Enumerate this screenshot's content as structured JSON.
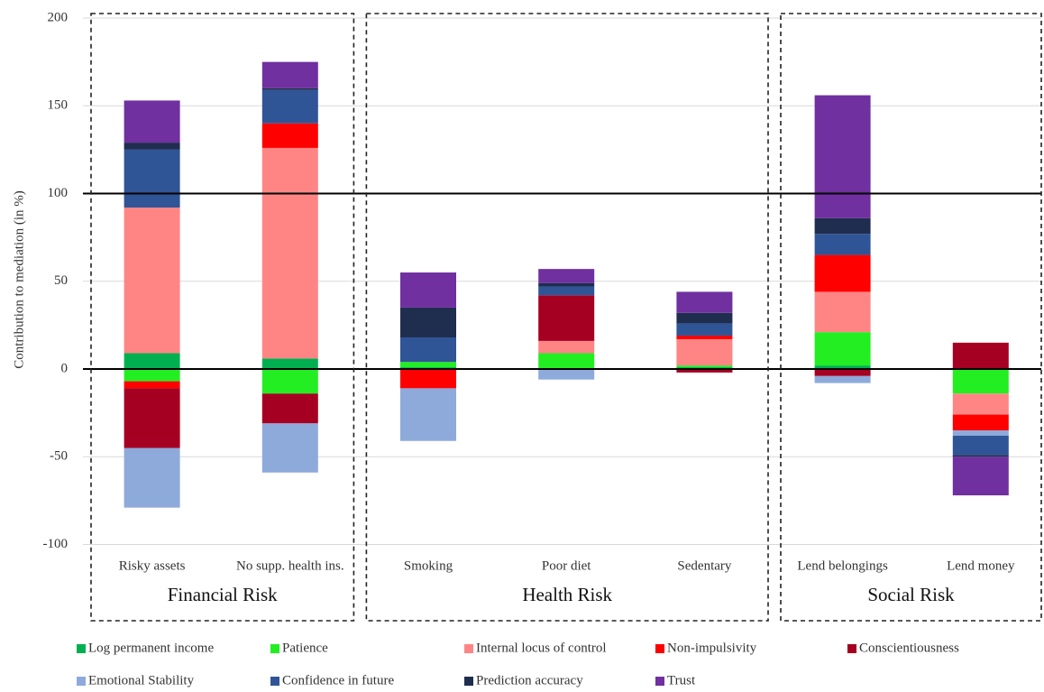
{
  "chart_data": {
    "type": "stacked-bar",
    "ylabel": "Contribution to mediation (in %)",
    "categories": [
      "Risky assets",
      "No supp. health ins.",
      "Smoking",
      "Poor diet",
      "Sedentary",
      "Lend belongings",
      "Lend money"
    ],
    "groups": [
      "Financial Risk",
      "Health Risk",
      "Social Risk"
    ],
    "ylim": [
      -100,
      200
    ],
    "yticks": [
      -100,
      -50,
      0,
      50,
      100,
      150,
      200
    ],
    "grid": true,
    "reference_lines": [
      0,
      100
    ],
    "series": [
      {
        "name": "Log permanent income",
        "color": "#00b050",
        "values": [
          9,
          6,
          1,
          0,
          1,
          2,
          0
        ]
      },
      {
        "name": "Patience",
        "color": "#22ee22",
        "values": [
          -7,
          -14,
          3,
          9,
          1,
          19,
          -14
        ]
      },
      {
        "name": "Internal locus of control",
        "color": "#ff8585",
        "values": [
          83,
          120,
          0,
          7,
          15,
          23,
          -12
        ]
      },
      {
        "name": "Non-impulsivity",
        "color": "#ff0000",
        "values": [
          -4,
          14,
          -11,
          0,
          2,
          21,
          -9
        ]
      },
      {
        "name": "Conscientiousness",
        "color": "#a50021",
        "values": [
          -34,
          -17,
          0,
          26,
          -2,
          -4,
          15
        ]
      },
      {
        "name": "Emotional Stability",
        "color": "#8eaadb",
        "values": [
          -34,
          -28,
          -30,
          -6,
          0,
          -4,
          -3
        ]
      },
      {
        "name": "Confidence in future",
        "color": "#2f5597",
        "values": [
          33,
          19,
          14,
          5,
          7,
          12,
          -11
        ]
      },
      {
        "name": "Prediction accuracy",
        "color": "#1f2d4f",
        "values": [
          4,
          1,
          17,
          2,
          6,
          9,
          -1
        ]
      },
      {
        "name": "Trust",
        "color": "#7030a0",
        "values": [
          24,
          15,
          20,
          8,
          12,
          70,
          -22
        ]
      }
    ]
  }
}
